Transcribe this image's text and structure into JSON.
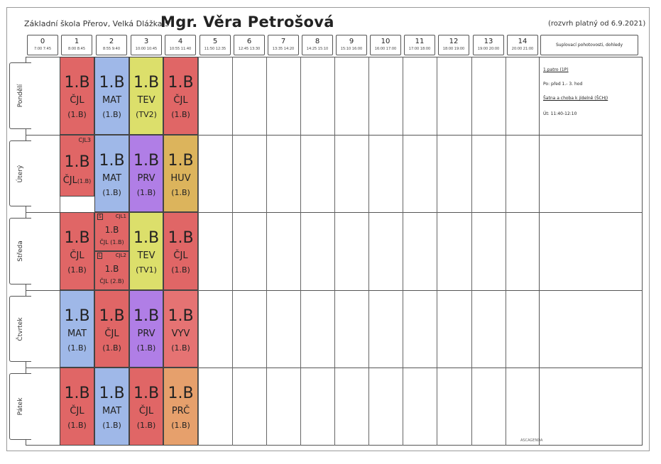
{
  "header": {
    "school": "Základní škola Přerov, Velká Dlážka 5",
    "teacher": "Mgr. Věra Petrošová",
    "valid": "(rozvrh platný od 6.9.2021)",
    "duty_header": "Suplovací pohotovosti, dohledy"
  },
  "periods": [
    {
      "n": "0",
      "t": "7:00 7:45"
    },
    {
      "n": "1",
      "t": "8:00 8:45"
    },
    {
      "n": "2",
      "t": "8:55 9:40"
    },
    {
      "n": "3",
      "t": "10:00 10:45"
    },
    {
      "n": "4",
      "t": "10:55 11:40"
    },
    {
      "n": "5",
      "t": "11:50 12:35"
    },
    {
      "n": "6",
      "t": "12:45 13:30"
    },
    {
      "n": "7",
      "t": "13:35 14:20"
    },
    {
      "n": "8",
      "t": "14:25 15:10"
    },
    {
      "n": "9",
      "t": "15:10 16:00"
    },
    {
      "n": "10",
      "t": "16:00 17:00"
    },
    {
      "n": "11",
      "t": "17:00 18:00"
    },
    {
      "n": "12",
      "t": "18:00 19:00"
    },
    {
      "n": "13",
      "t": "19:00 20:00"
    },
    {
      "n": "14",
      "t": "20:00 21:00"
    }
  ],
  "days": [
    "Pondělí",
    "Úterý",
    "Středa",
    "Čtvrtek",
    "Pátek"
  ],
  "colors": {
    "CJL": "#e06666",
    "MAT": "#9fb8e8",
    "TEV": "#dcdf6b",
    "PRV": "#b07ee6",
    "HUV": "#dcb45c",
    "VYV": "#e57373",
    "PRC": "#e6a06c"
  },
  "lessons": [
    {
      "day": 0,
      "period": 1,
      "cls": "1.B",
      "sub": "ČJL",
      "room": "(1.B)",
      "color": "#e06666"
    },
    {
      "day": 0,
      "period": 2,
      "cls": "1.B",
      "sub": "MAT",
      "room": "(1.B)",
      "color": "#9fb8e8"
    },
    {
      "day": 0,
      "period": 3,
      "cls": "1.B",
      "sub": "TEV",
      "room": "(TV2)",
      "color": "#dcdf6b"
    },
    {
      "day": 0,
      "period": 4,
      "cls": "1.B",
      "sub": "ČJL",
      "room": "(1.B)",
      "color": "#e06666"
    },
    {
      "day": 1,
      "period": 2,
      "cls": "1.B",
      "sub": "MAT",
      "room": "(1.B)",
      "color": "#9fb8e8"
    },
    {
      "day": 1,
      "period": 3,
      "cls": "1.B",
      "sub": "PRV",
      "room": "(1.B)",
      "color": "#b07ee6"
    },
    {
      "day": 1,
      "period": 4,
      "cls": "1.B",
      "sub": "HUV",
      "room": "(1.B)",
      "color": "#dcb45c"
    },
    {
      "day": 2,
      "period": 1,
      "cls": "1.B",
      "sub": "ČJL",
      "room": "(1.B)",
      "color": "#e06666"
    },
    {
      "day": 2,
      "period": 3,
      "cls": "1.B",
      "sub": "TEV",
      "room": "(TV1)",
      "color": "#dcdf6b"
    },
    {
      "day": 2,
      "period": 4,
      "cls": "1.B",
      "sub": "ČJL",
      "room": "(1.B)",
      "color": "#e06666"
    },
    {
      "day": 3,
      "period": 1,
      "cls": "1.B",
      "sub": "MAT",
      "room": "(1.B)",
      "color": "#9fb8e8"
    },
    {
      "day": 3,
      "period": 2,
      "cls": "1.B",
      "sub": "ČJL",
      "room": "(1.B)",
      "color": "#e06666"
    },
    {
      "day": 3,
      "period": 3,
      "cls": "1.B",
      "sub": "PRV",
      "room": "(1.B)",
      "color": "#b07ee6"
    },
    {
      "day": 3,
      "period": 4,
      "cls": "1.B",
      "sub": "VYV",
      "room": "(1.B)",
      "color": "#e57373"
    },
    {
      "day": 4,
      "period": 1,
      "cls": "1.B",
      "sub": "ČJL",
      "room": "(1.B)",
      "color": "#e06666"
    },
    {
      "day": 4,
      "period": 2,
      "cls": "1.B",
      "sub": "MAT",
      "room": "(1.B)",
      "color": "#9fb8e8"
    },
    {
      "day": 4,
      "period": 3,
      "cls": "1.B",
      "sub": "ČJL",
      "room": "(1.B)",
      "color": "#e06666"
    },
    {
      "day": 4,
      "period": 4,
      "cls": "1.B",
      "sub": "PRČ",
      "room": "(1.B)",
      "color": "#e6a06c"
    }
  ],
  "special": {
    "tue1": {
      "group": "CJL3",
      "cls": "1.B",
      "sub": "ČJL",
      "room": "(1.B)"
    },
    "wed2a": {
      "mark": "S",
      "group": "CJL1",
      "cls": "1.B",
      "sub": "ČJL (1.B)"
    },
    "wed2b": {
      "mark": "L",
      "group": "CJL2",
      "cls": "1.B",
      "sub": "ČJL (2.B)"
    }
  },
  "duty": {
    "floor": "1.patro (1P)",
    "floor_time": "Po: před 1.- 3. hod",
    "canteen": "Šatna a choba k jídelně (ŠCHJ)",
    "canteen_time": "Út: 11:40-12:10"
  },
  "footer_logo": "ASCAGENDA"
}
